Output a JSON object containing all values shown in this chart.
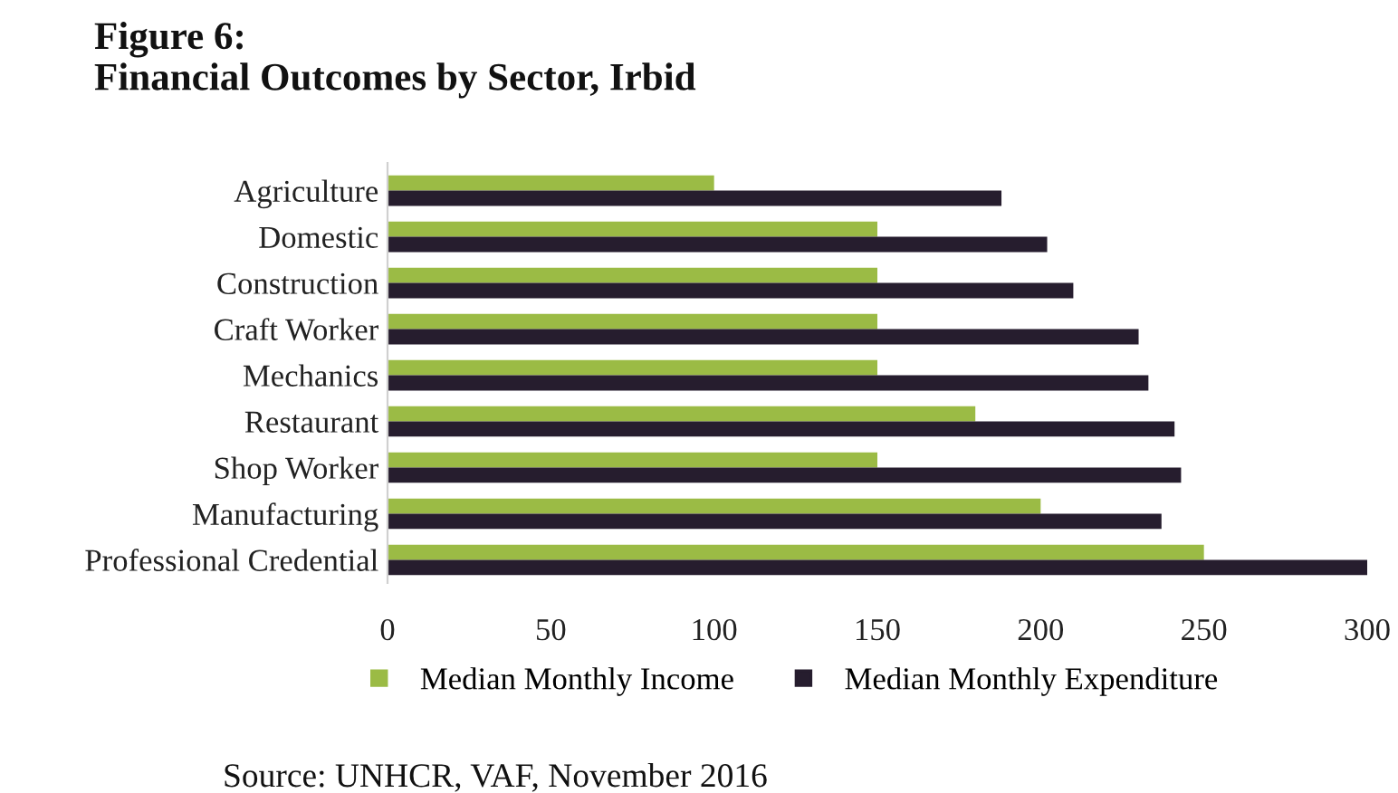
{
  "chart_data": {
    "type": "bar",
    "orientation": "horizontal",
    "title": "Figure 6:\nFinancial Outcomes by Sector, Irbid",
    "categories": [
      "Agriculture",
      "Domestic",
      "Construction",
      "Craft Worker",
      "Mechanics",
      "Restaurant",
      "Shop Worker",
      "Manufacturing",
      "Professional Credential"
    ],
    "series": [
      {
        "name": "Median Monthly Income",
        "color": "#9bbb45",
        "values": [
          100,
          150,
          150,
          150,
          150,
          180,
          150,
          200,
          250
        ]
      },
      {
        "name": "Median Monthly Expenditure",
        "color": "#261d2e",
        "values": [
          188,
          202,
          210,
          230,
          233,
          241,
          243,
          237,
          300
        ]
      }
    ],
    "xlim": [
      0,
      300
    ],
    "xticks": [
      0,
      50,
      100,
      150,
      200,
      250,
      300
    ],
    "grid": false,
    "legend": "bottom",
    "annotations": [
      "Source: UNHCR, VAF, November 2016"
    ]
  }
}
